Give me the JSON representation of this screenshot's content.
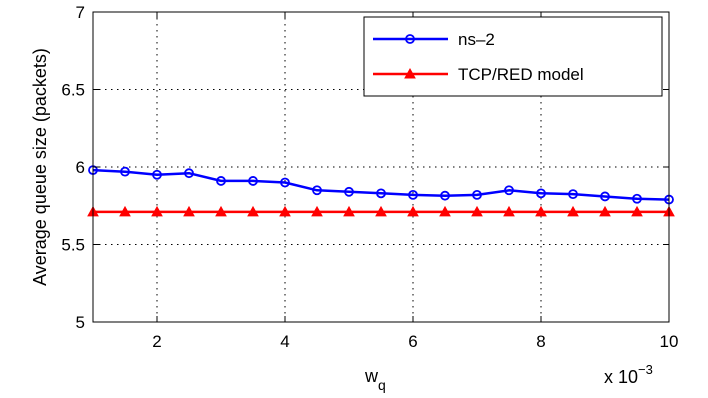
{
  "chart_data": {
    "type": "line",
    "xlabel_main": "w",
    "xlabel_sub": "q",
    "ylabel": "Average queue size (packets)",
    "x_multiplier_base": "x 10",
    "x_multiplier_exp": "−3",
    "xlim": [
      1,
      10
    ],
    "ylim": [
      5,
      7
    ],
    "xticks": [
      2,
      4,
      6,
      8,
      10
    ],
    "xtick_labels": [
      "2",
      "4",
      "6",
      "8",
      "10"
    ],
    "yticks": [
      5,
      5.5,
      6,
      6.5,
      7
    ],
    "ytick_labels": [
      "5",
      "5.5",
      "6",
      "6.5",
      "7"
    ],
    "grid": true,
    "legend_position": "top-right",
    "series": [
      {
        "name": "ns–2",
        "color": "#0000ff",
        "marker": "circle",
        "x": [
          1,
          1.5,
          2,
          2.5,
          3,
          3.5,
          4,
          4.5,
          5,
          5.5,
          6,
          6.5,
          7,
          7.5,
          8,
          8.5,
          9,
          9.5,
          10
        ],
        "y": [
          5.98,
          5.97,
          5.95,
          5.96,
          5.91,
          5.91,
          5.9,
          5.85,
          5.84,
          5.83,
          5.82,
          5.815,
          5.82,
          5.85,
          5.83,
          5.825,
          5.81,
          5.795,
          5.79
        ]
      },
      {
        "name": "TCP/RED model",
        "color": "#ff0000",
        "marker": "triangle",
        "x": [
          1,
          1.5,
          2,
          2.5,
          3,
          3.5,
          4,
          4.5,
          5,
          5.5,
          6,
          6.5,
          7,
          7.5,
          8,
          8.5,
          9,
          9.5,
          10
        ],
        "y": [
          5.71,
          5.71,
          5.71,
          5.71,
          5.71,
          5.71,
          5.71,
          5.71,
          5.71,
          5.71,
          5.71,
          5.71,
          5.71,
          5.71,
          5.71,
          5.71,
          5.71,
          5.71,
          5.71
        ]
      }
    ]
  }
}
